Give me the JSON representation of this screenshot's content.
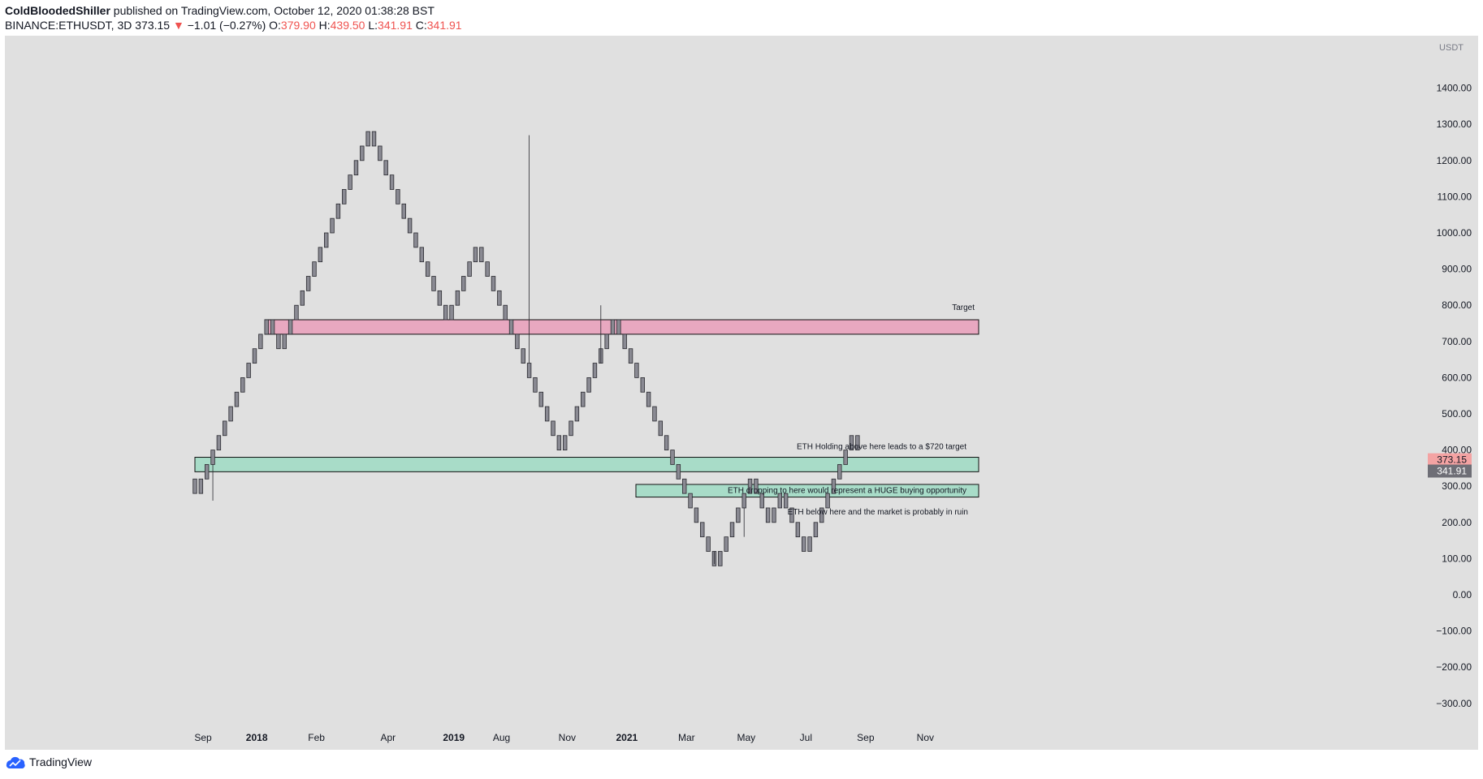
{
  "header": {
    "author": "ColdBloodedShiller",
    "published_text": "published on TradingView.com, October 12, 2020 01:38:28 BST",
    "symbol": "BINANCE:ETHUSDT, 3D",
    "last": "373.15",
    "change_arrow": "▼",
    "change": "−1.01 (−0.27%)",
    "o_label": "O:",
    "o_val": "379.90",
    "h_label": "H:",
    "h_val": "439.50",
    "l_label": "L:",
    "l_val": "341.91",
    "c_label": "C:",
    "c_val": "341.91"
  },
  "footer": {
    "brand": "TradingView"
  },
  "colors": {
    "plot_bg": "#e0e0e0",
    "target_zone": "#e8a8c0",
    "support_zone": "#a8dcc8",
    "brick": "#8a8a93",
    "price_red": "#f4a3a3",
    "price_gray": "#6e6e76"
  },
  "chart_data": {
    "type": "renko",
    "currency": "USDT",
    "ylim": [
      -340,
      1480
    ],
    "y_ticks": [
      1400,
      1300,
      1200,
      1100,
      1000,
      900,
      800,
      700,
      600,
      500,
      400,
      300,
      200,
      100,
      0,
      -100,
      -200,
      -300
    ],
    "y_tick_labels": [
      "1400.00",
      "1300.00",
      "1200.00",
      "1100.00",
      "1000.00",
      "900.00",
      "800.00",
      "700.00",
      "600.00",
      "500.00",
      "400.00",
      "300.00",
      "200.00",
      "100.00",
      "0.00",
      "−100.00",
      "−200.00",
      "−300.00"
    ],
    "x_labels": [
      {
        "label": "Sep",
        "index": 0,
        "bold": false
      },
      {
        "label": "2018",
        "index": 9,
        "bold": true
      },
      {
        "label": "Feb",
        "index": 19,
        "bold": false
      },
      {
        "label": "Apr",
        "index": 31,
        "bold": false
      },
      {
        "label": "2019",
        "index": 42,
        "bold": true
      },
      {
        "label": "Aug",
        "index": 50,
        "bold": false
      },
      {
        "label": "Nov",
        "index": 61,
        "bold": false
      },
      {
        "label": "2021",
        "index": 71,
        "bold": true
      },
      {
        "label": "Mar",
        "index": 81,
        "bold": false
      },
      {
        "label": "May",
        "index": 91,
        "bold": false
      },
      {
        "label": "Jul",
        "index": 101,
        "bold": false
      },
      {
        "label": "Sep",
        "index": 111,
        "bold": false
      },
      {
        "label": "Nov",
        "index": 121,
        "bold": false
      }
    ],
    "brick_size": 40,
    "renko_path": [
      320,
      280,
      320,
      360,
      400,
      440,
      480,
      520,
      560,
      600,
      640,
      680,
      720,
      760,
      720,
      680,
      720,
      760,
      800,
      840,
      880,
      920,
      960,
      1000,
      1040,
      1080,
      1120,
      1160,
      1200,
      1240,
      1280,
      1240,
      1200,
      1160,
      1120,
      1080,
      1040,
      1000,
      960,
      920,
      880,
      840,
      800,
      760,
      800,
      840,
      880,
      920,
      960,
      920,
      880,
      840,
      800,
      760,
      720,
      680,
      640,
      600,
      560,
      520,
      480,
      440,
      400,
      440,
      480,
      520,
      560,
      600,
      640,
      680,
      720,
      760,
      720,
      680,
      640,
      600,
      560,
      520,
      480,
      440,
      400,
      360,
      320,
      280,
      240,
      200,
      160,
      120,
      80,
      120,
      160,
      200,
      240,
      280,
      320,
      280,
      240,
      200,
      240,
      280,
      240,
      200,
      160,
      120,
      160,
      200,
      240,
      280,
      320,
      360,
      400,
      440,
      400
    ],
    "zones": [
      {
        "name": "Target",
        "low": 720,
        "high": 760,
        "label": "Target"
      },
      {
        "name": "support",
        "low": 340,
        "high": 380,
        "label": "ETH Holding above here leads to a $720 target"
      },
      {
        "name": "buy",
        "low": 270,
        "high": 305,
        "label": "ETH dropping to here would represent a HUGE buying opportunity"
      }
    ],
    "annotation_ruin": {
      "label": "ETH below here and the market is probably in ruin",
      "value": 215
    },
    "price_labels": [
      {
        "value": 373.15,
        "text": "373.15",
        "style": "red"
      },
      {
        "value": 341.91,
        "text": "341.91",
        "style": "gray"
      }
    ]
  }
}
